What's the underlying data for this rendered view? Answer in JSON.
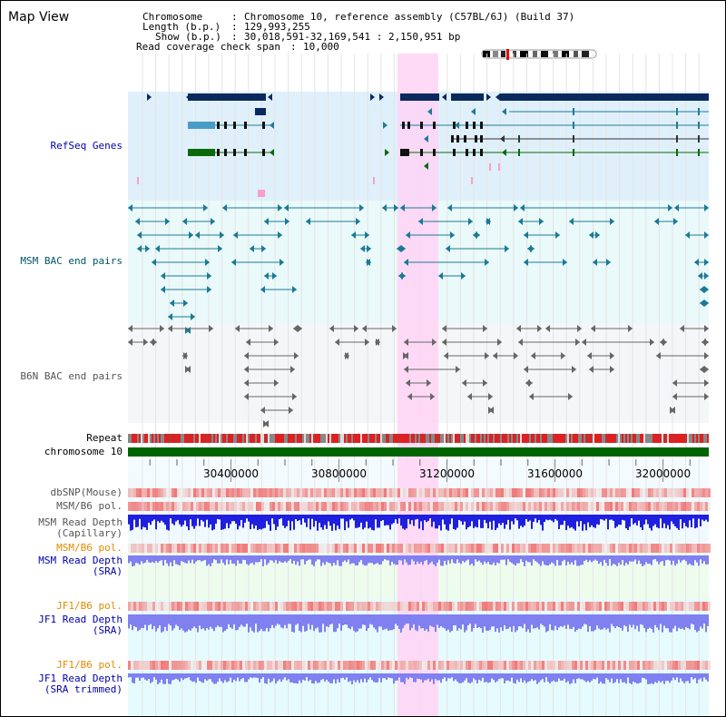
{
  "app": {
    "title": "Map View"
  },
  "info": {
    "chromosome_label": "Chromosome",
    "chromosome_value": "Chromosome 10, reference assembly (C57BL/6J) (Build 37)",
    "length_label": "Length (b.p.)",
    "length_value": "129,993,255",
    "show_label": "Show (b.p.)",
    "show_value": "30,018,591-32,169,541 : 2,150,951 bp",
    "coverage_label": "Read coverage check span",
    "coverage_value": "10,000"
  },
  "tracks": {
    "refseq": "RefSeq Genes",
    "msm_bac": "MSM BAC end pairs",
    "b6n_bac": "B6N BAC end pairs",
    "repeat": "Repeat",
    "chromosome": "chromosome 10",
    "dbsnp": "dbSNP(Mouse)",
    "msm_b6_pol": "MSM/B6 pol.",
    "msm_depth_cap_1": "MSM Read Depth",
    "msm_depth_cap_2": "(Capillary)",
    "msm_b6_pol_sra": "MSM/B6 pol.",
    "msm_depth_sra_1": "MSM Read Depth",
    "msm_depth_sra_2": "(SRA)",
    "jf1_b6_pol": "JF1/B6 pol.",
    "jf1_depth_sra_1": "JF1 Read Depth",
    "jf1_depth_sra_2": "(SRA)",
    "jf1_b6_pol_trim": "JF1/B6 pol.",
    "jf1_depth_trim_1": "JF1 Read Depth",
    "jf1_depth_trim_2": "(SRA trimmed)"
  },
  "axis": {
    "range_bp": [
      30018591,
      32169541
    ],
    "ticks": [
      "30400000",
      "30800000",
      "31200000",
      "31600000",
      "32000000"
    ]
  },
  "colors": {
    "refseq_bg": "#dff0fb",
    "bac_bg": "#eaf9f9",
    "b6n_bg": "#f4f6f8",
    "highlight": "#ffd4f6",
    "gene_dark": "#0a2a5e",
    "gene_teal": "#1f7c98",
    "gene_green": "#0a6a0a",
    "chromosome_bar": "#006400",
    "snp": "#ee6666",
    "depth_dark": "#1f1fe0",
    "depth_light": "#8080f0"
  }
}
